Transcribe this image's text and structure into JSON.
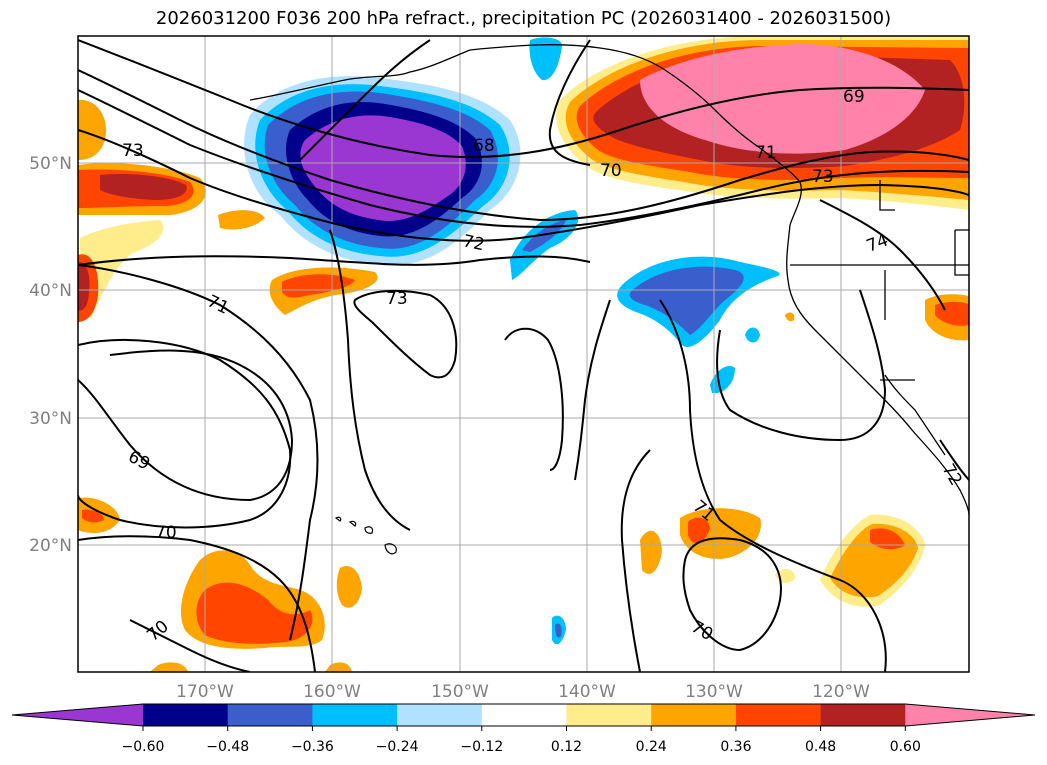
{
  "title": "2026031200 F036 200 hPa refract., precipitation PC (2026031400 - 2026031500)",
  "lat_labels": [
    "50°N",
    "40°N",
    "30°N",
    "20°N"
  ],
  "lon_labels": [
    "170°W",
    "160°W",
    "150°W",
    "140°W",
    "130°W",
    "120°W"
  ],
  "colorbar": {
    "ticks": [
      "−0.60",
      "−0.48",
      "−0.36",
      "−0.24",
      "−0.12",
      "0.12",
      "0.24",
      "0.36",
      "0.48",
      "0.60"
    ],
    "colors": [
      "#9a37d3",
      "#00008b",
      "#3a5fcd",
      "#00bfff",
      "#b0e2ff",
      "#ffffff",
      "#ffec8b",
      "#ffa500",
      "#ff4500",
      "#b22222",
      "#ff82ab"
    ]
  },
  "contour_labels": [
    "73",
    "71",
    "69",
    "70",
    "68",
    "72",
    "73",
    "70",
    "71",
    "73",
    "69",
    "74",
    "72",
    "71",
    "70",
    "70"
  ],
  "chart_data": {
    "type": "heatmap",
    "title": "2026031200 F036 200 hPa refract., precipitation PC (2026031400 - 2026031500)",
    "x_range_deg": [
      -180,
      -110
    ],
    "y_range_deg": [
      10,
      60
    ],
    "levels": [
      -0.6,
      -0.48,
      -0.36,
      -0.24,
      -0.12,
      0.12,
      0.24,
      0.36,
      0.48,
      0.6
    ],
    "contour_values": [
      68,
      69,
      70,
      71,
      72,
      73,
      74
    ]
  }
}
